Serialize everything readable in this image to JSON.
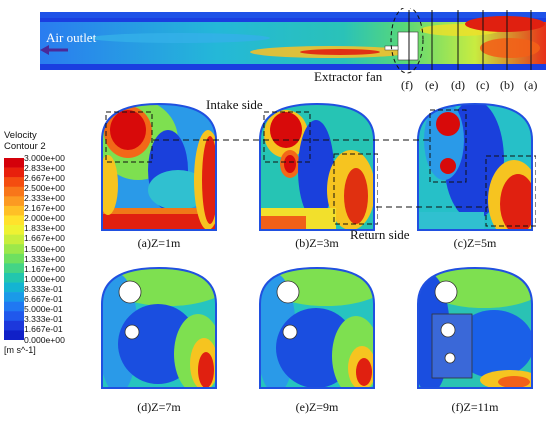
{
  "tunnel": {
    "air_outlet_label": "Air outlet",
    "extractor_fan_label": "Extractor fan",
    "section_markers": [
      "(f)",
      "(e)",
      "(d)",
      "(c)",
      "(b)",
      "(a)"
    ]
  },
  "annotations": {
    "intake_side": "Intake side",
    "return_side": "Return side"
  },
  "legend": {
    "title_line1": "Velocity",
    "title_line2": "Contour 2",
    "unit": "[m s^-1]",
    "values": [
      "3.000e+00",
      "2.833e+00",
      "2.667e+00",
      "2.500e+00",
      "2.333e+00",
      "2.167e+00",
      "2.000e+00",
      "1.833e+00",
      "1.667e+00",
      "1.500e+00",
      "1.333e+00",
      "1.167e+00",
      "1.000e+00",
      "8.333e-01",
      "6.667e-01",
      "5.000e-01",
      "3.333e-01",
      "1.667e-01",
      "0.000e+00"
    ],
    "colors": [
      "#d4000a",
      "#e8200c",
      "#f44d10",
      "#f8761a",
      "#fc9a22",
      "#ffc026",
      "#ffe22c",
      "#eef232",
      "#c8ee3c",
      "#9ce84a",
      "#6ee060",
      "#44d486",
      "#22c6ae",
      "#14b4d2",
      "#1a9ae8",
      "#2078f2",
      "#2058ec",
      "#1c38dc",
      "#1020c8"
    ]
  },
  "sections": [
    {
      "caption": "(a)Z=1m"
    },
    {
      "caption": "(b)Z=3m"
    },
    {
      "caption": "(c)Z=5m"
    },
    {
      "caption": "(d)Z=7m"
    },
    {
      "caption": "(e)Z=9m"
    },
    {
      "caption": "(f)Z=11m"
    }
  ]
}
